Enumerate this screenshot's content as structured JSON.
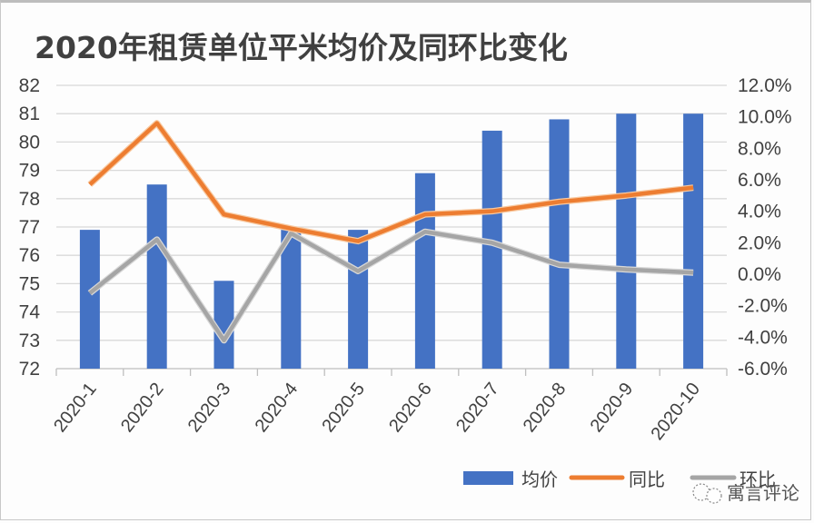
{
  "title": "2020年租赁单位平米均价及同环比变化",
  "legend": {
    "bar": "均价",
    "yoy": "同比",
    "mom": "环比"
  },
  "watermark": "寓言评论",
  "colors": {
    "bar": "#4472c4",
    "yoy": "#ed7d31",
    "mom": "#a5a5a5",
    "grid": "#d9d9d9",
    "text": "#404040"
  },
  "chart_data": {
    "type": "bar",
    "title": "2020年租赁单位平米均价及同环比变化",
    "xlabel": "",
    "ylabel": "",
    "categories": [
      "2020-1",
      "2020-2",
      "2020-3",
      "2020-4",
      "2020-5",
      "2020-6",
      "2020-7",
      "2020-8",
      "2020-9",
      "2020-10"
    ],
    "series": [
      {
        "name": "均价",
        "type": "bar",
        "axis": "left",
        "values": [
          76.9,
          78.5,
          75.1,
          76.9,
          76.9,
          78.9,
          80.4,
          80.8,
          81.0,
          81.0
        ]
      },
      {
        "name": "同比",
        "type": "line",
        "axis": "right",
        "unit": "%",
        "values": [
          5.7,
          9.6,
          3.8,
          2.9,
          2.1,
          3.8,
          4.0,
          4.6,
          5.0,
          5.5
        ]
      },
      {
        "name": "环比",
        "type": "line",
        "axis": "right",
        "unit": "%",
        "values": [
          -1.2,
          2.2,
          -4.2,
          2.6,
          0.2,
          2.7,
          2.0,
          0.6,
          0.3,
          0.1
        ]
      }
    ],
    "ylim": [
      72,
      82
    ],
    "y2lim": [
      -6.0,
      12.0
    ],
    "yticks": [
      "82",
      "81",
      "80",
      "79",
      "78",
      "77",
      "76",
      "75",
      "74",
      "73",
      "72"
    ],
    "y2ticks": [
      "12.0%",
      "10.0%",
      "8.0%",
      "6.0%",
      "4.0%",
      "2.0%",
      "0.0%",
      "-2.0%",
      "-4.0%",
      "-6.0%"
    ],
    "grid": true,
    "legend_position": "bottom-right"
  }
}
